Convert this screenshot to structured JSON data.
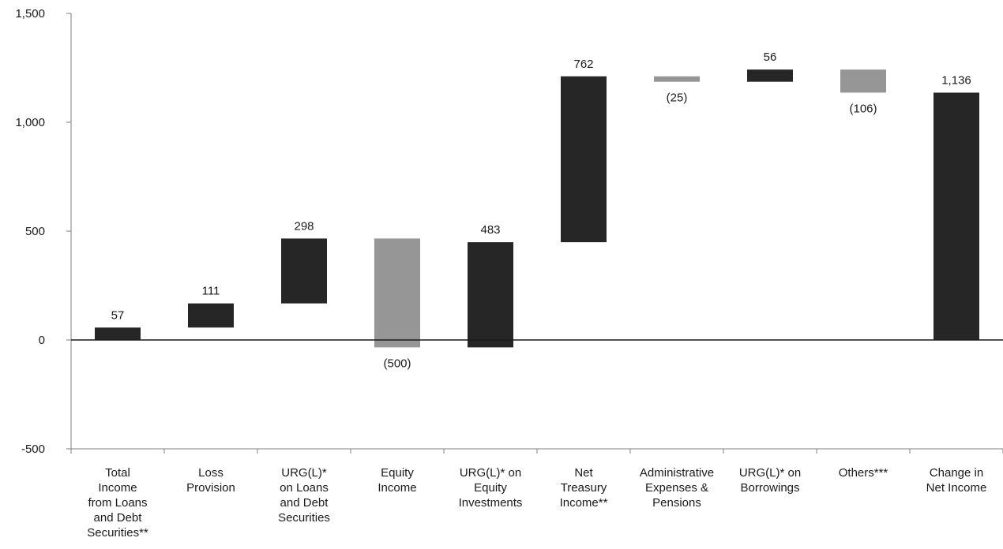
{
  "chart_data": {
    "type": "waterfall",
    "title": "",
    "xlabel": "",
    "ylabel": "",
    "ylim": [
      -500,
      1500
    ],
    "yticks": [
      -500,
      0,
      500,
      1000,
      1500
    ],
    "ytick_labels": [
      "-500",
      "0",
      "500",
      "1,000",
      "1,500"
    ],
    "categories": [
      [
        "Total",
        "Income",
        "from Loans",
        "and Debt",
        "Securities**"
      ],
      [
        "Loss",
        "Provision"
      ],
      [
        "URG(L)*",
        "on Loans",
        "and Debt",
        "Securities"
      ],
      [
        "Equity",
        "Income"
      ],
      [
        "URG(L)* on",
        "Equity",
        "Investments"
      ],
      [
        "Net",
        "Treasury",
        "Income**"
      ],
      [
        "Administrative",
        "Expenses &",
        "Pensions"
      ],
      [
        "URG(L)* on",
        "Borrowings"
      ],
      [
        "Others***"
      ],
      [
        "Change in",
        "Net Income"
      ]
    ],
    "bars": [
      {
        "start": 0,
        "end": 57,
        "value": 57,
        "label": "57",
        "kind": "increase"
      },
      {
        "start": 57,
        "end": 168,
        "value": 111,
        "label": "111",
        "kind": "increase"
      },
      {
        "start": 168,
        "end": 466,
        "value": 298,
        "label": "298",
        "kind": "increase"
      },
      {
        "start": 466,
        "end": -34,
        "value": -500,
        "label": "(500)",
        "kind": "decrease"
      },
      {
        "start": -34,
        "end": 449,
        "value": 483,
        "label": "483",
        "kind": "increase"
      },
      {
        "start": 449,
        "end": 1211,
        "value": 762,
        "label": "762",
        "kind": "increase"
      },
      {
        "start": 1211,
        "end": 1186,
        "value": -25,
        "label": "(25)",
        "kind": "decrease"
      },
      {
        "start": 1186,
        "end": 1242,
        "value": 56,
        "label": "56",
        "kind": "increase"
      },
      {
        "start": 1242,
        "end": 1136,
        "value": -106,
        "label": "(106)",
        "kind": "decrease"
      },
      {
        "start": 0,
        "end": 1136,
        "value": 1136,
        "label": "1,136",
        "kind": "total"
      }
    ],
    "colors": {
      "increase": "#262626",
      "decrease": "#969696",
      "total": "#262626",
      "axis": "#7f7f7f",
      "zero_line": "#1a1a1a"
    },
    "grid": false,
    "legend": "none"
  }
}
